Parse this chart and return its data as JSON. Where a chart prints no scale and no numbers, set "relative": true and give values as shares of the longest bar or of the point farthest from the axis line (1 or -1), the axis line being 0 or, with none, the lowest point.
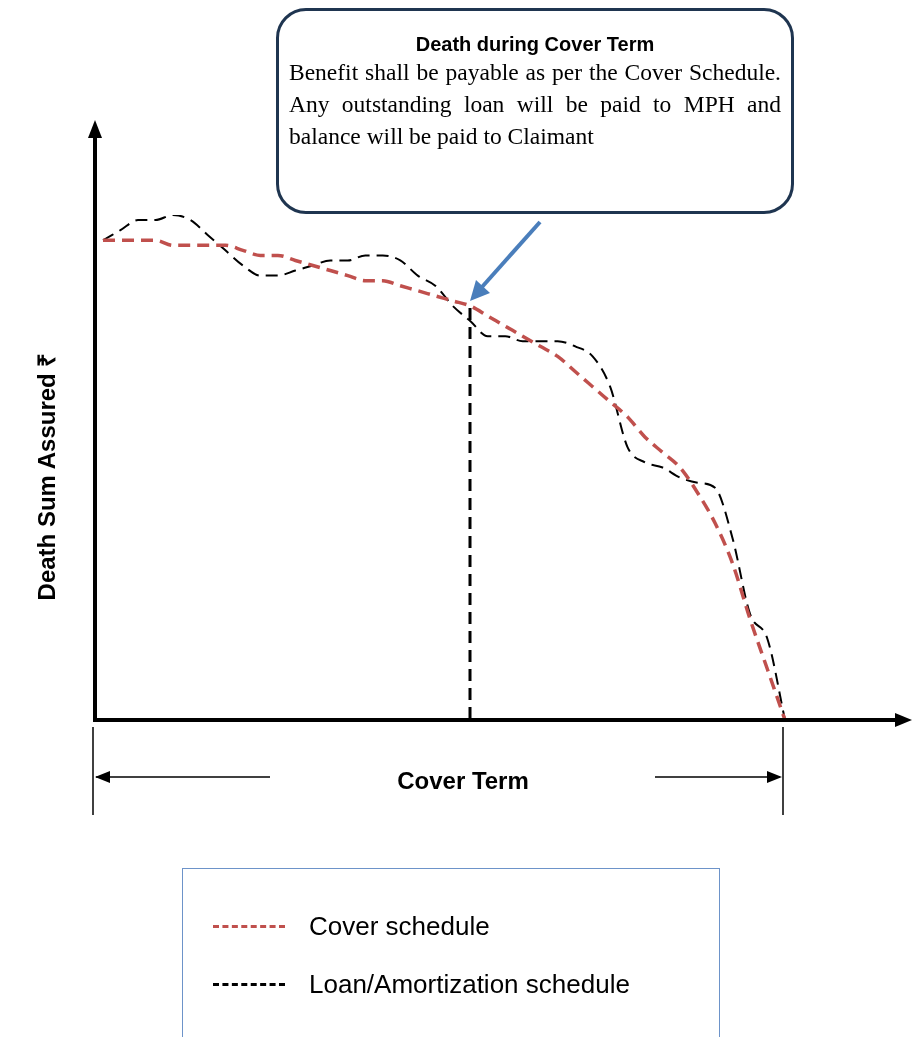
{
  "chart_data": {
    "type": "line",
    "relative": true,
    "xlabel": "Cover Term",
    "ylabel": "Death Sum Assured ₹",
    "categories": [
      null,
      null,
      null,
      null,
      null,
      null,
      null,
      null,
      null,
      null,
      null,
      null,
      null,
      null,
      null,
      null,
      null,
      null,
      null,
      null,
      null,
      null,
      null,
      null,
      null,
      null,
      null,
      null,
      null,
      null,
      null,
      null,
      null,
      null,
      null,
      null,
      null,
      null,
      null,
      null
    ],
    "series": [
      {
        "name": "Cover schedule",
        "color": "#c0504d",
        "values": [
          0.95,
          0.95,
          0.95,
          0.95,
          0.94,
          0.94,
          0.94,
          0.94,
          0.93,
          0.92,
          0.92,
          0.91,
          0.9,
          0.89,
          0.88,
          0.87,
          0.87,
          0.86,
          0.85,
          0.84,
          0.83,
          0.82,
          0.8,
          0.78,
          0.76,
          0.74,
          0.72,
          0.69,
          0.66,
          0.63,
          0.6,
          0.56,
          0.53,
          0.5,
          0.45,
          0.39,
          0.31,
          0.2,
          0.1,
          0
        ]
      },
      {
        "name": "Loan/Amortization schedule",
        "color": "#000000",
        "values": [
          0.95,
          0.97,
          0.99,
          0.99,
          1.0,
          0.99,
          0.96,
          0.93,
          0.9,
          0.88,
          0.88,
          0.89,
          0.9,
          0.91,
          0.91,
          0.92,
          0.92,
          0.91,
          0.88,
          0.86,
          0.82,
          0.79,
          0.76,
          0.76,
          0.75,
          0.75,
          0.75,
          0.74,
          0.72,
          0.66,
          0.54,
          0.51,
          0.5,
          0.48,
          0.47,
          0.46,
          0.36,
          0.21,
          0.16,
          0
        ]
      }
    ],
    "line_style": "dashed",
    "marker": "none",
    "legend": "bottom",
    "annotations": [
      "Death during Cover Term",
      "Benefit shall be payable as per the Cover Schedule. Any outstanding loan will be paid to MPH and balance will be paid to Claimant"
    ]
  }
}
